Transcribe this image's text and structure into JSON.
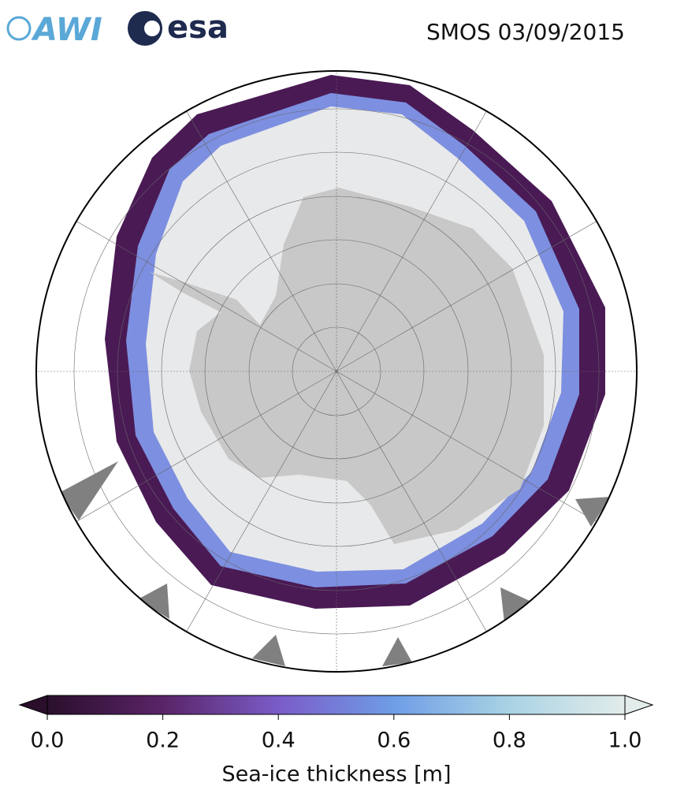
{
  "header": {
    "logos": {
      "awi": "AWI",
      "esa": "esa"
    },
    "title": "SMOS 03/09/2015"
  },
  "colorbar": {
    "label": "Sea-ice thickness [m]",
    "xlim": [
      0,
      1
    ],
    "xticks": [
      {
        "value": 0,
        "label": "0.0"
      },
      0.2,
      0.4,
      0.6,
      0.8,
      {
        "value": 1,
        "label": "1.0"
      }
    ],
    "colors": [
      "#2a0f2c",
      "#5a2468",
      "#7a5cc8",
      "#6f9de6",
      "#a9d3e4",
      "#e2ecea"
    ]
  }
}
